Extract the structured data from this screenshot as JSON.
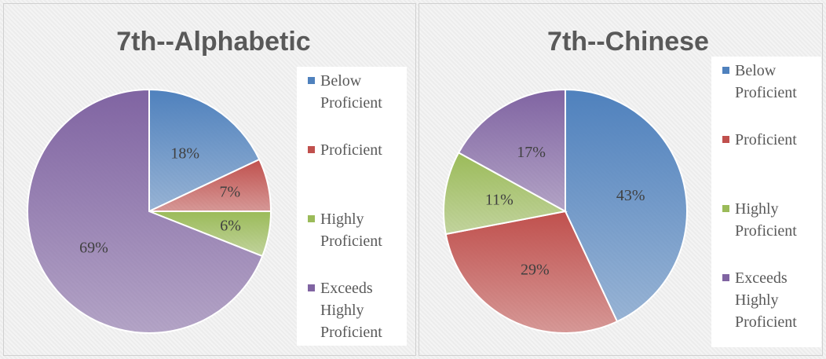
{
  "chart_data": [
    {
      "type": "pie",
      "title": "7th--Alphabetic",
      "categories": [
        "Below Proficient",
        "Proficient",
        "Highly Proficient",
        "Exceeds Highly Proficient"
      ],
      "values": [
        18,
        7,
        6,
        69
      ],
      "value_labels": [
        "18%",
        "7%",
        "6%",
        "69%"
      ],
      "colors": [
        "#4f81bd",
        "#c0504d",
        "#9bbb59",
        "#8064a2"
      ],
      "legend": "right"
    },
    {
      "type": "pie",
      "title": "7th--Chinese",
      "categories": [
        "Below Proficient",
        "Proficient",
        "Highly Proficient",
        "Exceeds Highly Proficient"
      ],
      "values": [
        43,
        29,
        11,
        17
      ],
      "value_labels": [
        "43%",
        "29%",
        "11%",
        "17%"
      ],
      "colors": [
        "#4f81bd",
        "#c0504d",
        "#9bbb59",
        "#8064a2"
      ],
      "legend": "right"
    }
  ]
}
